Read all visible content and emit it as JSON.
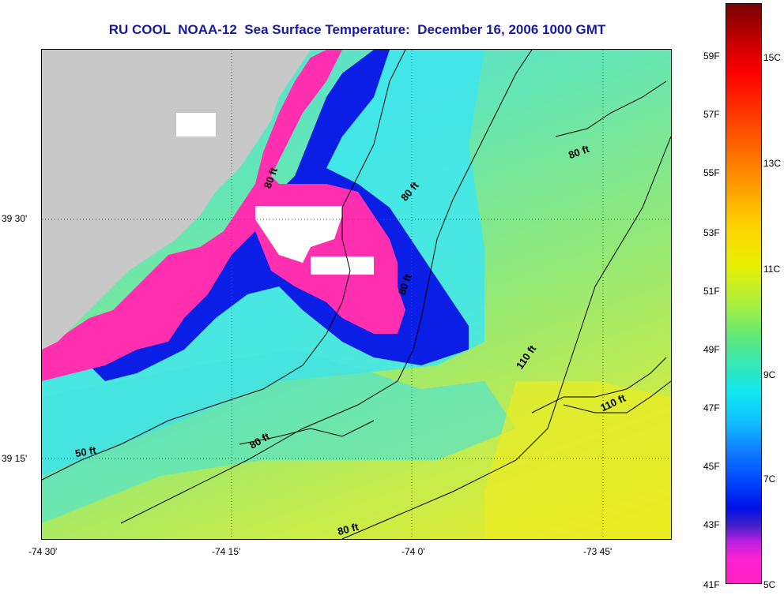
{
  "title": "RU COOL  NOAA-12  Sea Surface Temperature:  December 16, 2006 1000 GMT",
  "axes": {
    "x_ticks": [
      "-74 30'",
      "-74 15'",
      "-74 0'",
      "-73 45'"
    ],
    "y_ticks": [
      "39 30'",
      "39 15'"
    ]
  },
  "contour_labels": [
    "50 ft",
    "80 ft",
    "80 ft",
    "80 ft",
    "80 ft",
    "80 ft",
    "80 ft",
    "110 ft",
    "110 ft"
  ],
  "colorbar": {
    "fahrenheit": [
      "59F",
      "57F",
      "55F",
      "53F",
      "51F",
      "49F",
      "47F",
      "45F",
      "43F",
      "41F"
    ],
    "celsius": [
      "15C",
      "13C",
      "11C",
      "9C",
      "7C",
      "5C"
    ]
  },
  "colors": {
    "land": "#c8c8c8",
    "cold_pink": "#ff2fb0",
    "blue": "#0a1ee6",
    "cyan": "#3ee6f0",
    "green": "#8ee878",
    "yellow": "#ecec22",
    "title": "#1a1aa0"
  }
}
